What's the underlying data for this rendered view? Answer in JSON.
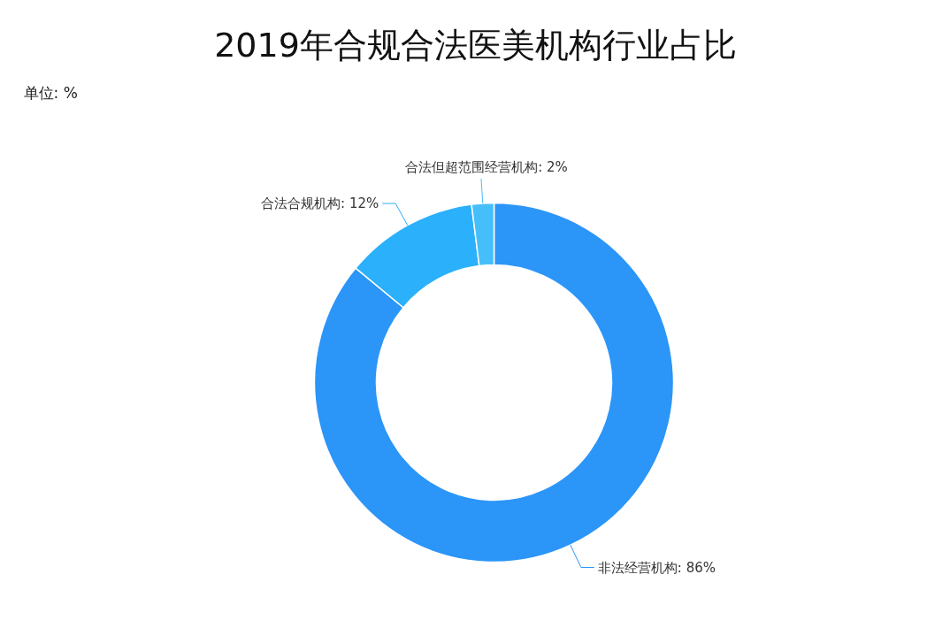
{
  "chart_data": {
    "type": "donut",
    "title": "2019年合规合法医美机构行业占比",
    "annotations": [
      "单位: %"
    ],
    "categories": [
      "非法经营机构",
      "合法合规机构",
      "合法但超范围经营机构"
    ],
    "values": [
      86,
      12,
      2
    ],
    "value_labels": [
      "86%",
      "12%",
      "2%"
    ],
    "colors": [
      "#2b95f8",
      "#2bb0fb",
      "#45bff9"
    ]
  }
}
